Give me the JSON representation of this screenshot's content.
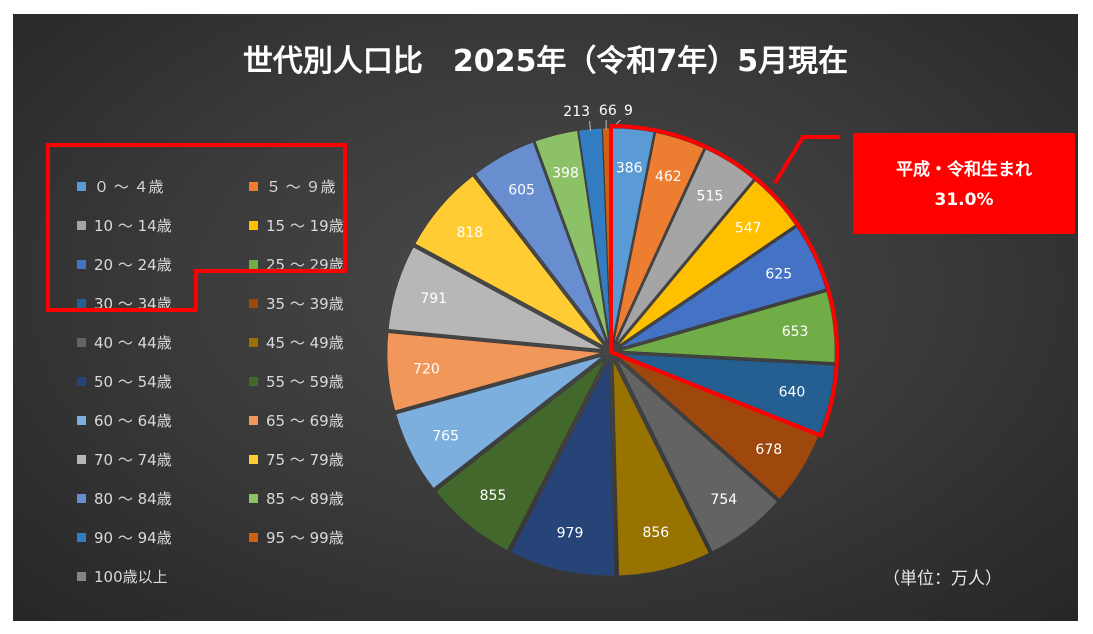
{
  "title": "世代別人口比　2025年（令和7年）5月現在",
  "unit_label": "（単位：万人）",
  "callout": {
    "line1": "平成・令和生まれ",
    "line2": "31.0%"
  },
  "chart_data": {
    "type": "pie",
    "start": "top",
    "direction": "clockwise",
    "categories": [
      "０ ～ ４歳",
      "５ ～ ９歳",
      "10 ～ 14歳",
      "15 ～ 19歳",
      "20 ～ 24歳",
      "25 ～ 29歳",
      "30 ～ 34歳",
      "35 ～ 39歳",
      "40 ～ 44歳",
      "45 ～ 49歳",
      "50 ～ 54歳",
      "55 ～ 59歳",
      "60 ～ 64歳",
      "65 ～ 69歳",
      "70 ～ 74歳",
      "75 ～ 79歳",
      "80 ～ 84歳",
      "85 ～ 89歳",
      "90 ～ 94歳",
      "95 ～ 99歳",
      "100歳以上"
    ],
    "values": [
      386,
      462,
      515,
      547,
      625,
      653,
      640,
      678,
      754,
      856,
      979,
      855,
      765,
      720,
      791,
      818,
      605,
      398,
      213,
      66,
      9
    ],
    "colors": [
      "#5b9bd5",
      "#ed7d31",
      "#a5a5a5",
      "#ffc000",
      "#4472c4",
      "#70ad47",
      "#255e91",
      "#9e480e",
      "#636363",
      "#997300",
      "#264478",
      "#43682b",
      "#7cafdd",
      "#f1975a",
      "#b7b7b7",
      "#ffcd33",
      "#698ed0",
      "#8cc168",
      "#327dc2",
      "#d26012",
      "#848484"
    ],
    "highlight": {
      "categories_from": "０ ～ ４歳",
      "categories_to": "30 ～ 34歳",
      "share": "31.0%"
    },
    "legend_position": "left"
  }
}
